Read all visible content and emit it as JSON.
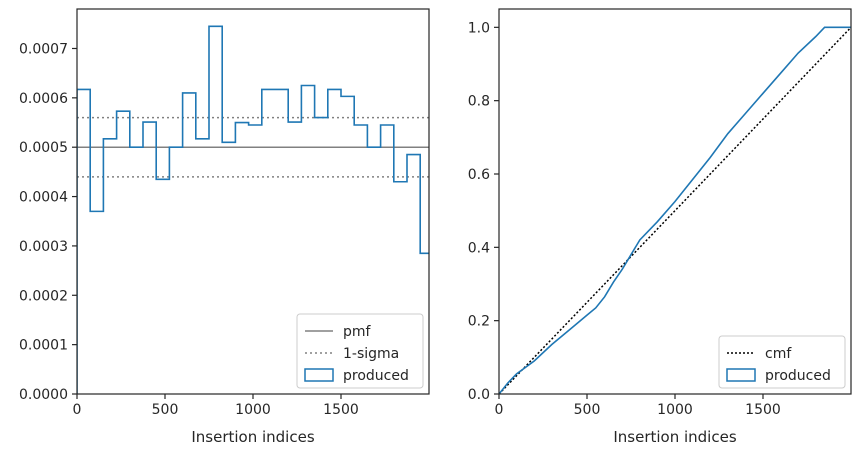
{
  "chart_data": [
    {
      "type": "histogram",
      "xlabel": "Insertion indices",
      "ylabel": "",
      "xlim": [
        0,
        2000
      ],
      "ylim": [
        0,
        0.00078
      ],
      "x_ticks": [
        0,
        500,
        1000,
        1500
      ],
      "x_tick_labels": [
        "0",
        "500",
        "1000",
        "1500"
      ],
      "y_ticks": [
        0,
        0.0001,
        0.0002,
        0.0003,
        0.0004,
        0.0005,
        0.0006,
        0.0007
      ],
      "y_tick_labels": [
        "0.0000",
        "0.0001",
        "0.0002",
        "0.0003",
        "0.0004",
        "0.0005",
        "0.0006",
        "0.0007"
      ],
      "legend_position": "lower-right",
      "legend": [
        "pmf",
        "1-sigma",
        "produced"
      ],
      "reference_lines": [
        {
          "name": "pmf",
          "y": 0.0005,
          "style": "solid",
          "color": "#808080"
        },
        {
          "name": "1-sigma",
          "y": 0.00056,
          "style": "dotted",
          "color": "#808080"
        },
        {
          "name": "1-sigma",
          "y": 0.00044,
          "style": "dotted",
          "color": "#808080"
        }
      ],
      "series": [
        {
          "name": "produced",
          "color": "#1f77b4",
          "bin_width": 75,
          "x_start": 0,
          "values": [
            0.000617,
            0.00037,
            0.000517,
            0.000573,
            0.0005,
            0.000551,
            0.000435,
            0.0005,
            0.00061,
            0.000517,
            0.000745,
            0.00051,
            0.00055,
            0.000545,
            0.000617,
            0.000617,
            0.000551,
            0.000625,
            0.00056,
            0.000617,
            0.000603,
            0.000545,
            0.0005,
            0.000545,
            0.00043,
            0.000485,
            0.000285,
            0.0
          ]
        }
      ]
    },
    {
      "type": "line",
      "xlabel": "Insertion indices",
      "ylabel": "",
      "xlim": [
        0,
        2000
      ],
      "ylim": [
        0,
        1.05
      ],
      "x_ticks": [
        0,
        500,
        1000,
        1500
      ],
      "x_tick_labels": [
        "0",
        "500",
        "1000",
        "1500"
      ],
      "y_ticks": [
        0,
        0.2,
        0.4,
        0.6,
        0.8,
        1.0
      ],
      "y_tick_labels": [
        "0.0",
        "0.2",
        "0.4",
        "0.6",
        "0.8",
        "1.0"
      ],
      "legend_position": "lower-right",
      "legend": [
        "cmf",
        "produced"
      ],
      "series": [
        {
          "name": "cmf",
          "style": "dotted",
          "color": "#000000",
          "x": [
            0,
            2000
          ],
          "y": [
            0,
            1.0
          ]
        },
        {
          "name": "produced",
          "style": "solid",
          "color": "#1f77b4",
          "x": [
            0,
            50,
            100,
            200,
            300,
            400,
            500,
            550,
            600,
            650,
            700,
            750,
            800,
            900,
            1000,
            1100,
            1200,
            1300,
            1400,
            1500,
            1600,
            1700,
            1800,
            1850,
            2000
          ],
          "y": [
            0,
            0.03,
            0.055,
            0.09,
            0.135,
            0.175,
            0.215,
            0.235,
            0.265,
            0.305,
            0.34,
            0.38,
            0.42,
            0.47,
            0.525,
            0.585,
            0.645,
            0.71,
            0.765,
            0.82,
            0.875,
            0.93,
            0.975,
            1.0,
            1.0
          ]
        }
      ]
    }
  ]
}
